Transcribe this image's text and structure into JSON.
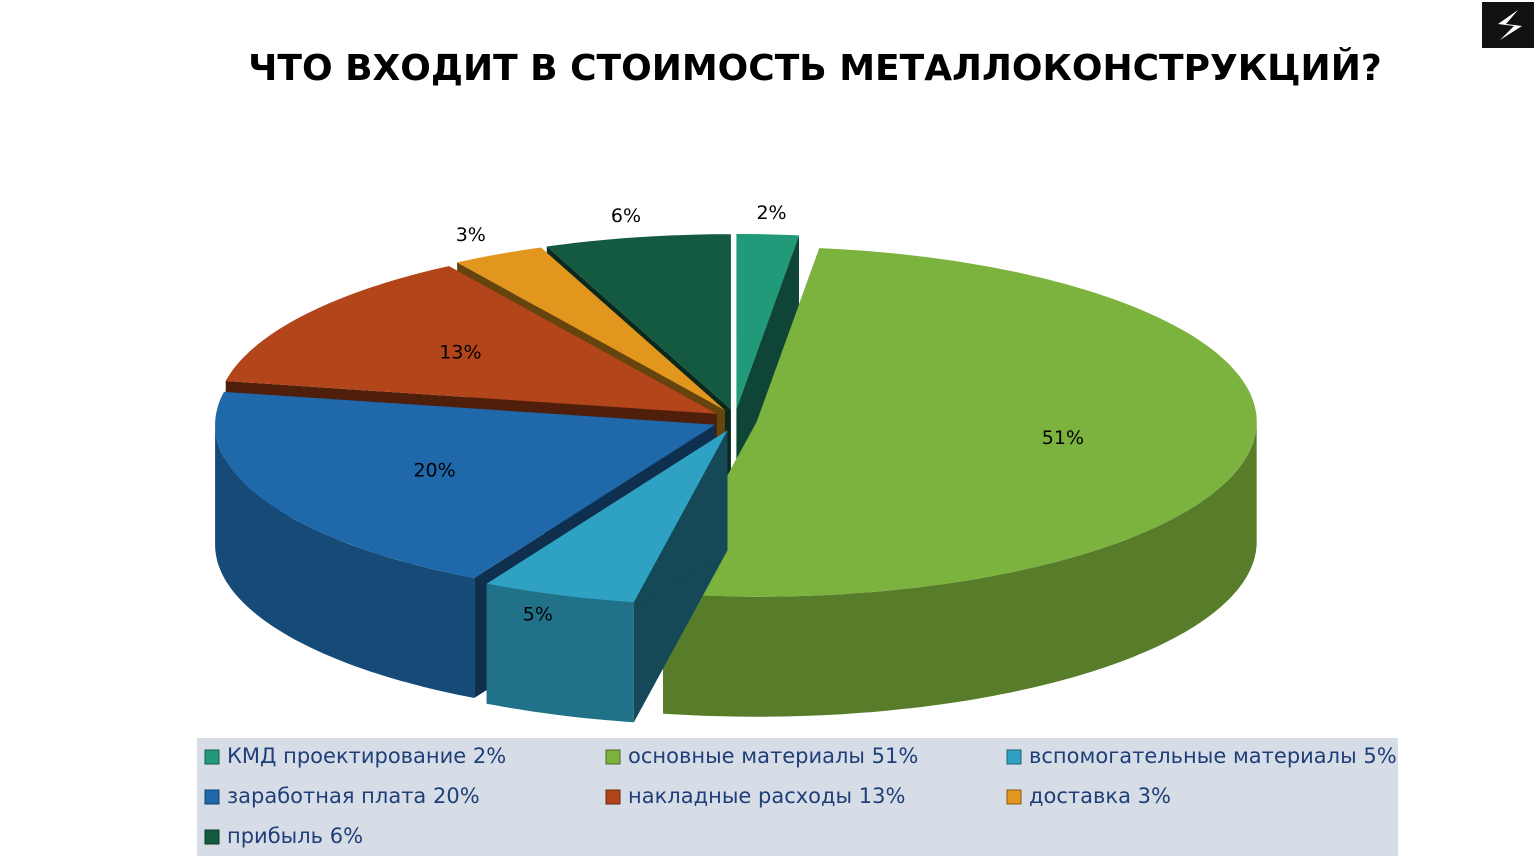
{
  "chart_data": {
    "type": "pie",
    "title": "ЧТО ВХОДИТ В СТОИМОСТЬ МЕТАЛЛОКОНСТРУКЦИЙ?",
    "categories": [
      "КМД проектирование 2%",
      "основные материалы 51%",
      "вспомогательные материалы 5%",
      "заработная плата 20%",
      "накладные расходы 13%",
      "доставка 3%",
      "прибыль 6%"
    ],
    "values": [
      2,
      51,
      5,
      20,
      13,
      3,
      6
    ],
    "value_labels": [
      "2%",
      "51%",
      "5%",
      "20%",
      "13%",
      "3%",
      "6%"
    ],
    "colors": [
      "#209a78",
      "#7cb23e",
      "#2fa2c3",
      "#1f69aa",
      "#b2451a",
      "#e3961d",
      "#135a40"
    ],
    "legend": "bottom"
  }
}
